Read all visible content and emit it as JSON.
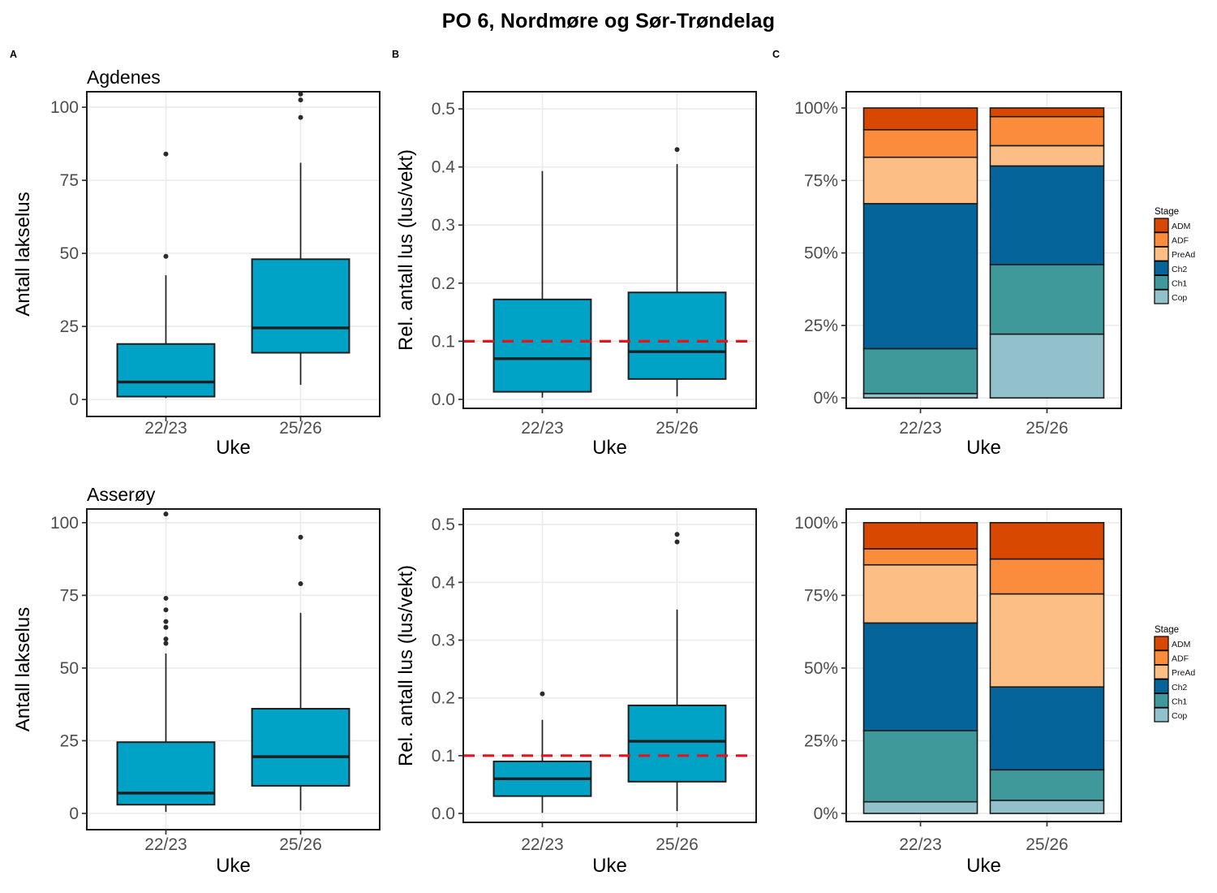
{
  "figure": {
    "title": "PO 6, Nordmøre og Sør-Trøndelag",
    "panel_labels": [
      "A",
      "B",
      "C"
    ],
    "colors": {
      "box_fill": "#00A3C6",
      "box_stroke": "#1F1F1F",
      "refline": "#E8131A",
      "grid": "#EBEBEB",
      "panel_border": "#1A1A1A",
      "tick_text": "#4D4D4D",
      "stage": {
        "ADM": "#D94801",
        "ADF": "#FB8C3B",
        "PreAd": "#FDBE85",
        "Ch2": "#05659B",
        "Ch1": "#3F999B",
        "Cop": "#92C1CB"
      }
    }
  },
  "chart_data": [
    {
      "id": "agdenes-antall-lakselus",
      "type": "box",
      "location": "Agdenes",
      "title": "Agdenes",
      "xlabel": "Uke",
      "ylabel": "Antall lakselus",
      "categories": [
        "22/23",
        "25/26"
      ],
      "ylim": [
        -5.8,
        105.3
      ],
      "yticks": {
        "values": [
          0,
          25,
          50,
          75,
          100
        ],
        "labels": [
          "0",
          "25",
          "50",
          "75",
          "100"
        ]
      },
      "boxes": [
        {
          "category": "22/23",
          "whisker_low": 0.5,
          "q1": 1,
          "median": 6,
          "q3": 19,
          "whisker_high": 42.5,
          "outliers": [
            49,
            84
          ]
        },
        {
          "category": "25/26",
          "whisker_low": 5,
          "q1": 16,
          "median": 24.5,
          "q3": 48,
          "whisker_high": 81,
          "outliers": [
            96.5,
            102.5,
            104.5
          ]
        }
      ]
    },
    {
      "id": "agdenes-rel-antall-lus",
      "type": "box",
      "location": "Agdenes",
      "title": "",
      "xlabel": "Uke",
      "ylabel": "Rel. antall lus (lus/vekt)",
      "categories": [
        "22/23",
        "25/26"
      ],
      "ylim": [
        -0.0155,
        0.5295
      ],
      "yticks": {
        "values": [
          0,
          0.1,
          0.2,
          0.3,
          0.4,
          0.5
        ],
        "labels": [
          "0.0",
          "0.1",
          "0.2",
          "0.3",
          "0.4",
          "0.5"
        ]
      },
      "refline": 0.1,
      "boxes": [
        {
          "category": "22/23",
          "whisker_low": 0.003,
          "q1": 0.013,
          "median": 0.07,
          "q3": 0.172,
          "whisker_high": 0.393,
          "outliers": []
        },
        {
          "category": "25/26",
          "whisker_low": 0.005,
          "q1": 0.035,
          "median": 0.082,
          "q3": 0.184,
          "whisker_high": 0.405,
          "outliers": [
            0.43
          ]
        }
      ]
    },
    {
      "id": "agdenes-stage-fordeling",
      "type": "stacked_bar_percent",
      "location": "Agdenes",
      "title": "",
      "xlabel": "Uke",
      "ylabel": "",
      "categories": [
        "22/23",
        "25/26"
      ],
      "ylim": [
        -3.6,
        105.6
      ],
      "yticks": {
        "values": [
          0,
          25,
          50,
          75,
          100
        ],
        "labels": [
          "0%",
          "25%",
          "50%",
          "75%",
          "100%"
        ]
      },
      "stack_order_bottom_to_top": [
        "Cop",
        "Ch1",
        "Ch2",
        "PreAd",
        "ADF",
        "ADM"
      ],
      "series": [
        {
          "name": "ADM",
          "values": [
            7.5,
            3
          ]
        },
        {
          "name": "ADF",
          "values": [
            9.5,
            10
          ]
        },
        {
          "name": "PreAd",
          "values": [
            16,
            7
          ]
        },
        {
          "name": "Ch2",
          "values": [
            50,
            34
          ]
        },
        {
          "name": "Ch1",
          "values": [
            15.5,
            24
          ]
        },
        {
          "name": "Cop",
          "values": [
            1.5,
            22
          ]
        }
      ],
      "legend": {
        "title": "Stage",
        "entries": [
          "ADM",
          "ADF",
          "PreAd",
          "Ch2",
          "Ch1",
          "Cop"
        ]
      }
    },
    {
      "id": "asseroy-antall-lakselus",
      "type": "box",
      "location": "Asserøy",
      "title": "Asserøy",
      "xlabel": "Uke",
      "ylabel": "Antall lakselus",
      "categories": [
        "22/23",
        "25/26"
      ],
      "ylim": [
        -5.6,
        104.7
      ],
      "yticks": {
        "values": [
          0,
          25,
          50,
          75,
          100
        ],
        "labels": [
          "0",
          "25",
          "50",
          "75",
          "100"
        ]
      },
      "boxes": [
        {
          "category": "22/23",
          "whisker_low": 0.5,
          "q1": 3,
          "median": 7,
          "q3": 24.5,
          "whisker_high": 55,
          "outliers": [
            58.5,
            60,
            64,
            66,
            70,
            74,
            103
          ]
        },
        {
          "category": "25/26",
          "whisker_low": 1,
          "q1": 9.5,
          "median": 19.5,
          "q3": 36,
          "whisker_high": 69,
          "outliers": [
            79,
            95
          ]
        }
      ]
    },
    {
      "id": "asseroy-rel-antall-lus",
      "type": "box",
      "location": "Asserøy",
      "title": "",
      "xlabel": "Uke",
      "ylabel": "Rel. antall lus (lus/vekt)",
      "categories": [
        "22/23",
        "25/26"
      ],
      "ylim": [
        -0.0155,
        0.527
      ],
      "yticks": {
        "values": [
          0,
          0.1,
          0.2,
          0.3,
          0.4,
          0.5
        ],
        "labels": [
          "0.0",
          "0.1",
          "0.2",
          "0.3",
          "0.4",
          "0.5"
        ]
      },
      "refline": 0.1,
      "boxes": [
        {
          "category": "22/23",
          "whisker_low": 0.001,
          "q1": 0.03,
          "median": 0.06,
          "q3": 0.09,
          "whisker_high": 0.162,
          "outliers": [
            0.207
          ]
        },
        {
          "category": "25/26",
          "whisker_low": 0.004,
          "q1": 0.055,
          "median": 0.125,
          "q3": 0.187,
          "whisker_high": 0.353,
          "outliers": [
            0.47,
            0.483
          ]
        }
      ]
    },
    {
      "id": "asseroy-stage-fordeling",
      "type": "stacked_bar_percent",
      "location": "Asserøy",
      "title": "",
      "xlabel": "Uke",
      "ylabel": "",
      "categories": [
        "22/23",
        "25/26"
      ],
      "ylim": [
        -2.8,
        104.7
      ],
      "yticks": {
        "values": [
          0,
          25,
          50,
          75,
          100
        ],
        "labels": [
          "0%",
          "25%",
          "50%",
          "75%",
          "100%"
        ]
      },
      "stack_order_bottom_to_top": [
        "Cop",
        "Ch1",
        "Ch2",
        "PreAd",
        "ADF",
        "ADM"
      ],
      "series": [
        {
          "name": "ADM",
          "values": [
            9,
            12.5
          ]
        },
        {
          "name": "ADF",
          "values": [
            5.5,
            12
          ]
        },
        {
          "name": "PreAd",
          "values": [
            20,
            32
          ]
        },
        {
          "name": "Ch2",
          "values": [
            37,
            28.5
          ]
        },
        {
          "name": "Ch1",
          "values": [
            24.5,
            10.5
          ]
        },
        {
          "name": "Cop",
          "values": [
            4,
            4.5
          ]
        }
      ],
      "legend": {
        "title": "Stage",
        "entries": [
          "ADM",
          "ADF",
          "PreAd",
          "Ch2",
          "Ch1",
          "Cop"
        ]
      }
    }
  ]
}
